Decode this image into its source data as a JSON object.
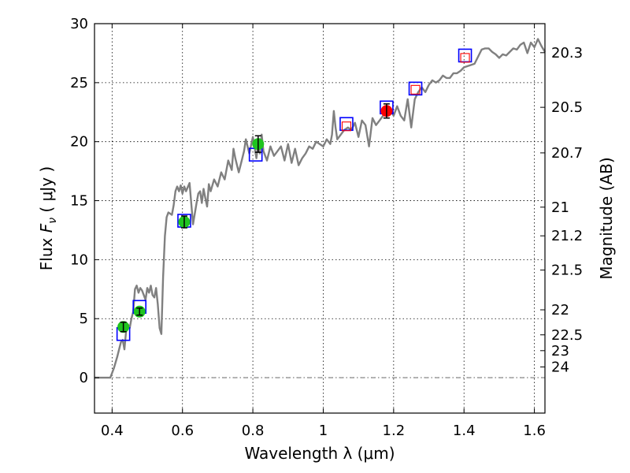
{
  "chart_data": {
    "type": "line",
    "xlabel": "Wavelength  λ (μm)",
    "ylabel": {
      "prefix": "Flux  ",
      "symbol": "F",
      "subscript": "ν",
      "suffix": "  ( μJy )"
    },
    "y2label": "Magnitude (AB)",
    "xlim": [
      0.35,
      1.63
    ],
    "ylim": [
      -3,
      30
    ],
    "grid": true,
    "x_ticks": [
      {
        "value": 0.4,
        "label": "0.4"
      },
      {
        "value": 0.6,
        "label": "0.6"
      },
      {
        "value": 0.8,
        "label": "0.8"
      },
      {
        "value": 1.0,
        "label": "1"
      },
      {
        "value": 1.2,
        "label": "1.2"
      },
      {
        "value": 1.4,
        "label": "1.4"
      },
      {
        "value": 1.6,
        "label": "1.6"
      }
    ],
    "y_ticks": [
      {
        "value": 0,
        "label": "0"
      },
      {
        "value": 5,
        "label": "5"
      },
      {
        "value": 10,
        "label": "10"
      },
      {
        "value": 15,
        "label": "15"
      },
      {
        "value": 20,
        "label": "20"
      },
      {
        "value": 25,
        "label": "25"
      },
      {
        "value": 30,
        "label": "30"
      }
    ],
    "mag_ticks": [
      {
        "flux": 27.54,
        "label": "20.3"
      },
      {
        "flux": 22.91,
        "label": "20.5"
      },
      {
        "flux": 19.05,
        "label": "20.7"
      },
      {
        "flux": 14.45,
        "label": "21"
      },
      {
        "flux": 12.02,
        "label": "21.2"
      },
      {
        "flux": 9.12,
        "label": "21.5"
      },
      {
        "flux": 5.75,
        "label": "22"
      },
      {
        "flux": 3.63,
        "label": "22.5"
      },
      {
        "flux": 2.29,
        "label": "23"
      },
      {
        "flux": 0.91,
        "label": "24"
      }
    ],
    "spectrum": {
      "color": "#808080",
      "x": [
        0.35,
        0.395,
        0.405,
        0.415,
        0.425,
        0.43,
        0.435,
        0.44,
        0.445,
        0.45,
        0.455,
        0.46,
        0.465,
        0.47,
        0.475,
        0.48,
        0.485,
        0.49,
        0.495,
        0.5,
        0.505,
        0.51,
        0.515,
        0.52,
        0.525,
        0.53,
        0.535,
        0.54,
        0.545,
        0.55,
        0.555,
        0.56,
        0.57,
        0.575,
        0.58,
        0.585,
        0.59,
        0.595,
        0.6,
        0.605,
        0.61,
        0.62,
        0.63,
        0.64,
        0.645,
        0.65,
        0.655,
        0.66,
        0.665,
        0.67,
        0.675,
        0.68,
        0.69,
        0.7,
        0.71,
        0.72,
        0.73,
        0.74,
        0.745,
        0.75,
        0.76,
        0.77,
        0.775,
        0.78,
        0.79,
        0.8,
        0.81,
        0.815,
        0.82,
        0.825,
        0.83,
        0.84,
        0.85,
        0.86,
        0.87,
        0.88,
        0.89,
        0.9,
        0.91,
        0.92,
        0.93,
        0.94,
        0.95,
        0.96,
        0.97,
        0.98,
        0.99,
        1.0,
        1.01,
        1.02,
        1.025,
        1.03,
        1.035,
        1.04,
        1.05,
        1.06,
        1.07,
        1.08,
        1.09,
        1.1,
        1.11,
        1.12,
        1.13,
        1.14,
        1.15,
        1.16,
        1.17,
        1.18,
        1.19,
        1.2,
        1.21,
        1.22,
        1.23,
        1.24,
        1.25,
        1.26,
        1.27,
        1.28,
        1.29,
        1.3,
        1.31,
        1.32,
        1.33,
        1.34,
        1.35,
        1.36,
        1.37,
        1.38,
        1.39,
        1.4,
        1.41,
        1.42,
        1.43,
        1.44,
        1.45,
        1.46,
        1.47,
        1.48,
        1.49,
        1.5,
        1.51,
        1.52,
        1.53,
        1.54,
        1.55,
        1.56,
        1.57,
        1.58,
        1.59,
        1.6,
        1.61,
        1.62,
        1.63
      ],
      "y": [
        0,
        0,
        0.8,
        1.8,
        3.0,
        3.2,
        2.4,
        4.0,
        4.5,
        4.2,
        5.0,
        5.6,
        7.5,
        7.8,
        7.2,
        7.6,
        7.4,
        7.0,
        6.6,
        7.6,
        7.2,
        7.8,
        7.0,
        6.8,
        7.6,
        6.2,
        4.2,
        3.7,
        8.5,
        12.0,
        13.6,
        14.0,
        13.8,
        14.6,
        15.8,
        16.2,
        15.8,
        16.3,
        15.6,
        16.2,
        15.8,
        16.5,
        13.0,
        14.8,
        15.6,
        15.8,
        14.8,
        16.0,
        15.2,
        14.5,
        16.4,
        15.8,
        16.8,
        16.2,
        17.4,
        16.8,
        18.4,
        17.6,
        19.4,
        18.6,
        17.4,
        18.6,
        19.2,
        20.2,
        19.0,
        20.4,
        18.6,
        19.8,
        19.0,
        20.6,
        19.2,
        18.4,
        19.6,
        18.8,
        19.2,
        19.6,
        18.4,
        19.8,
        18.2,
        19.4,
        18.0,
        18.6,
        19.0,
        19.6,
        19.4,
        20.0,
        19.8,
        19.6,
        20.2,
        19.8,
        20.6,
        22.6,
        21.2,
        20.2,
        20.6,
        21.0,
        21.2,
        21.0,
        21.6,
        20.4,
        21.8,
        21.4,
        19.6,
        22.0,
        21.4,
        21.8,
        22.2,
        22.6,
        22.8,
        22.2,
        23.0,
        22.2,
        21.8,
        23.6,
        21.2,
        23.6,
        24.2,
        24.6,
        24.2,
        24.8,
        25.2,
        25.0,
        25.2,
        25.6,
        25.4,
        25.4,
        25.8,
        25.8,
        26.0,
        26.3,
        26.4,
        26.5,
        26.6,
        27.2,
        27.8,
        27.9,
        27.9,
        27.6,
        27.4,
        27.1,
        27.4,
        27.3,
        27.6,
        27.9,
        27.8,
        28.2,
        28.4,
        27.5,
        28.4,
        28.0,
        28.7,
        28.1,
        27.6
      ]
    },
    "model_points": {
      "marker": "square",
      "color": "#0000ff",
      "points": [
        {
          "x": 0.432,
          "y": 3.7
        },
        {
          "x": 0.478,
          "y": 6.0
        },
        {
          "x": 0.605,
          "y": 13.3
        },
        {
          "x": 0.808,
          "y": 18.9
        },
        {
          "x": 1.066,
          "y": 21.5
        },
        {
          "x": 1.18,
          "y": 22.9
        },
        {
          "x": 1.262,
          "y": 24.5
        },
        {
          "x": 1.403,
          "y": 27.3
        }
      ]
    },
    "synthetic_points": {
      "marker": "square",
      "color": "#ff0000",
      "points": [
        {
          "x": 1.066,
          "y": 21.3
        },
        {
          "x": 1.262,
          "y": 24.4
        },
        {
          "x": 1.403,
          "y": 27.1
        }
      ]
    },
    "observed_optical": {
      "marker": "circle",
      "color": "#1fc41f",
      "points": [
        {
          "x": 0.432,
          "y": 4.3,
          "err": 0.4
        },
        {
          "x": 0.478,
          "y": 5.6,
          "err": 0.3
        },
        {
          "x": 0.605,
          "y": 13.2,
          "err": 0.5
        },
        {
          "x": 0.815,
          "y": 19.8,
          "err": 0.7
        }
      ]
    },
    "observed_nir": {
      "marker": "circle",
      "color": "#ff0000",
      "points": [
        {
          "x": 1.18,
          "y": 22.6,
          "err": 0.6
        }
      ]
    }
  }
}
